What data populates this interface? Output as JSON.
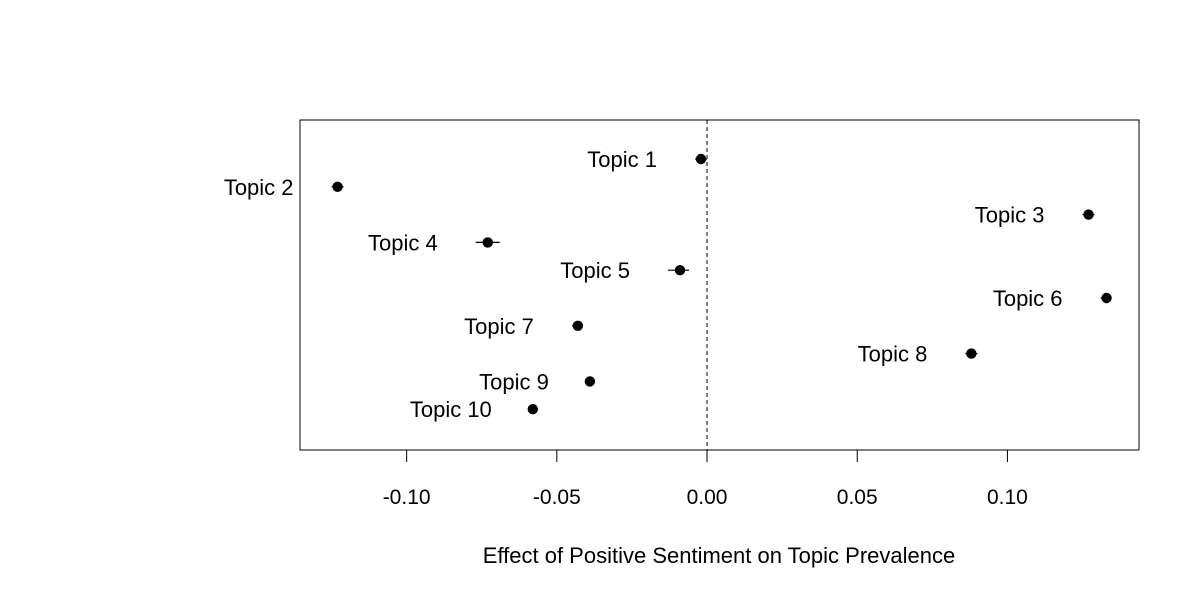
{
  "chart_data": {
    "type": "scatter",
    "title": "",
    "xlabel": "Effect of Positive Sentiment on Topic Prevalence",
    "ylabel": "",
    "xlim": [
      -0.1355,
      0.1438
    ],
    "xticks": [
      -0.1,
      -0.05,
      0.0,
      0.05,
      0.1
    ],
    "xtick_labels": [
      "-0.10",
      "-0.05",
      "0.00",
      "0.05",
      "0.10"
    ],
    "reference_line": 0.0,
    "grid": false,
    "legend": "none",
    "points": [
      {
        "label": "Topic 1",
        "estimate": -0.002,
        "ci": [
          -0.004,
          0.0
        ]
      },
      {
        "label": "Topic 2",
        "estimate": -0.123,
        "ci": [
          -0.125,
          -0.121
        ]
      },
      {
        "label": "Topic 3",
        "estimate": 0.127,
        "ci": [
          0.125,
          0.129
        ]
      },
      {
        "label": "Topic 4",
        "estimate": -0.073,
        "ci": [
          -0.077,
          -0.069
        ]
      },
      {
        "label": "Topic 5",
        "estimate": -0.009,
        "ci": [
          -0.013,
          -0.006
        ]
      },
      {
        "label": "Topic 6",
        "estimate": 0.133,
        "ci": [
          0.131,
          0.134
        ]
      },
      {
        "label": "Topic 7",
        "estimate": -0.043,
        "ci": [
          -0.045,
          -0.042
        ]
      },
      {
        "label": "Topic 8",
        "estimate": 0.088,
        "ci": [
          0.086,
          0.09
        ]
      },
      {
        "label": "Topic 9",
        "estimate": -0.039,
        "ci": [
          -0.04,
          -0.038
        ]
      },
      {
        "label": "Topic 10",
        "estimate": -0.058,
        "ci": [
          -0.059,
          -0.057
        ]
      }
    ]
  }
}
